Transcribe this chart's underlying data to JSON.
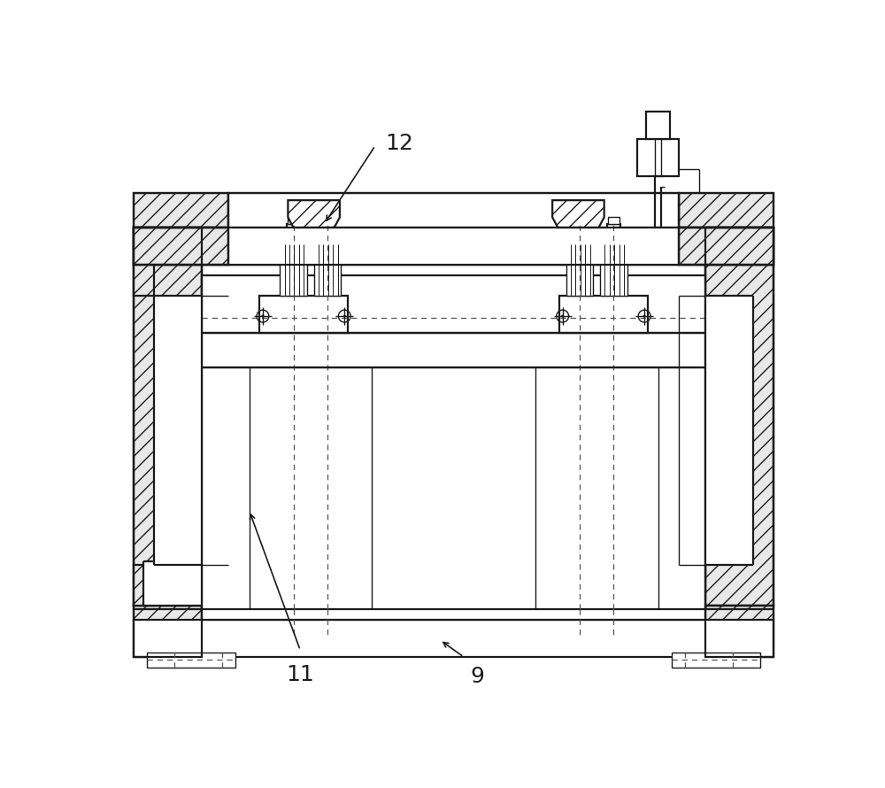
{
  "bg_color": "#ffffff",
  "lc": "#1a1a1a",
  "lw_main": 1.6,
  "lw_thin": 1.0,
  "figsize": [
    10.0,
    8.9
  ],
  "dpi": 100,
  "labels": {
    "12": [
      395,
      815
    ],
    "11": [
      275,
      60
    ],
    "9": [
      520,
      55
    ]
  }
}
